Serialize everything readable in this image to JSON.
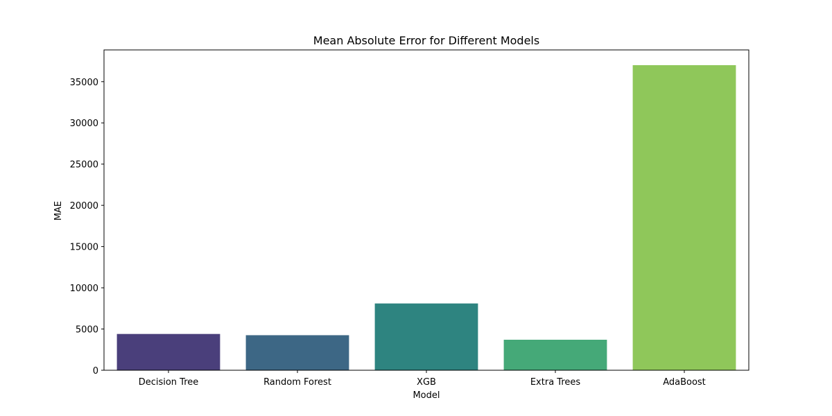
{
  "chart_data": {
    "type": "bar",
    "title": "Mean Absolute Error for Different Models",
    "xlabel": "Model",
    "ylabel": "MAE",
    "categories": [
      "Decision Tree",
      "Random Forest",
      "XGB",
      "Extra Trees",
      "AdaBoost"
    ],
    "values": [
      4400,
      4250,
      8100,
      3700,
      37000
    ],
    "colors": [
      "#4a3f7b",
      "#3d6785",
      "#2e8480",
      "#45a978",
      "#8fc75a"
    ],
    "ylim": [
      0,
      38850
    ],
    "yticks": [
      0,
      5000,
      10000,
      15000,
      20000,
      25000,
      30000,
      35000
    ],
    "grid": false
  }
}
